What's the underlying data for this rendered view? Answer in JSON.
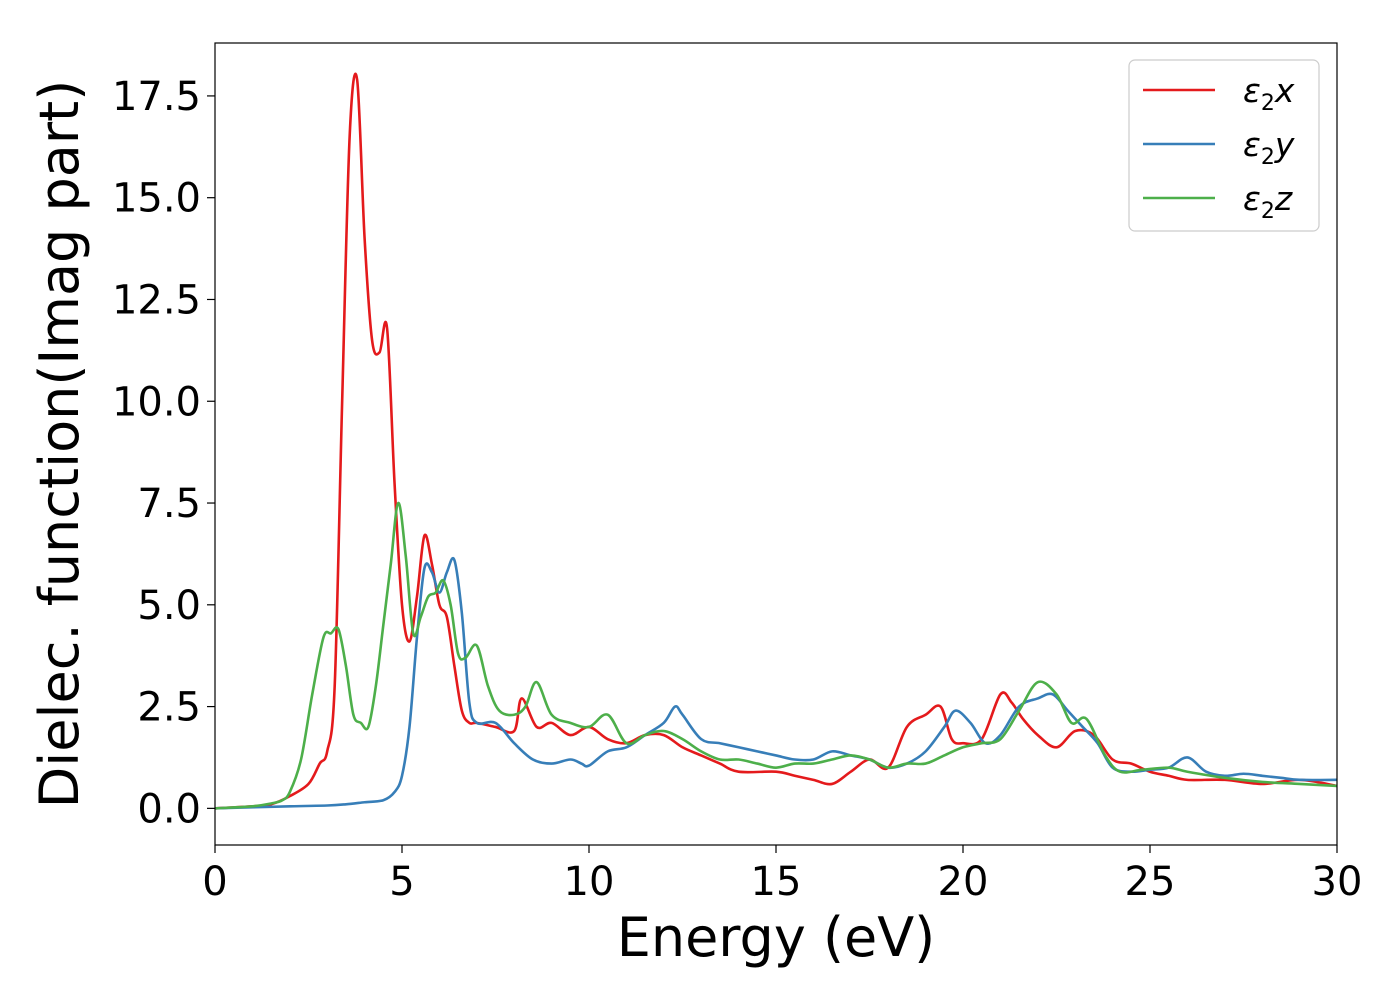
{
  "chart_data": {
    "type": "line",
    "title": "",
    "xlabel": "Energy (eV)",
    "ylabel": "Dielec. function(Imag part)",
    "xlim": [
      0,
      30
    ],
    "ylim": [
      -0.9,
      18.8
    ],
    "xticks": [
      0,
      5,
      10,
      15,
      20,
      25,
      30
    ],
    "xtick_labels": [
      "0",
      "5",
      "10",
      "15",
      "20",
      "25",
      "30"
    ],
    "yticks": [
      0.0,
      2.5,
      5.0,
      7.5,
      10.0,
      12.5,
      15.0,
      17.5
    ],
    "ytick_labels": [
      "0.0",
      "2.5",
      "5.0",
      "7.5",
      "10.0",
      "12.5",
      "15.0",
      "17.5"
    ],
    "grid": false,
    "legend_position": "top-right",
    "series": [
      {
        "name": "ε2x",
        "label_main": "ε",
        "label_sub": "2",
        "label_suffix": "x",
        "color": "#e41a1c",
        "x": [
          0,
          1,
          1.5,
          2,
          2.5,
          2.8,
          3.0,
          3.2,
          3.4,
          3.6,
          3.8,
          4.0,
          4.2,
          4.4,
          4.6,
          4.8,
          5.0,
          5.2,
          5.4,
          5.6,
          5.8,
          6.0,
          6.2,
          6.4,
          6.6,
          6.8,
          7.0,
          7.5,
          8.0,
          8.2,
          8.6,
          9.0,
          9.5,
          10.0,
          10.5,
          11.0,
          11.5,
          12.0,
          12.5,
          13.0,
          13.5,
          14.0,
          15.0,
          15.5,
          16.0,
          16.5,
          17.0,
          17.5,
          18.0,
          18.5,
          19.0,
          19.4,
          19.7,
          20.0,
          20.5,
          21.0,
          21.3,
          21.6,
          22.0,
          22.5,
          23.0,
          23.5,
          24.0,
          24.5,
          25.0,
          25.5,
          26.0,
          27.0,
          28.0,
          29.0,
          30.0
        ],
        "y": [
          0,
          0.05,
          0.1,
          0.3,
          0.6,
          1.1,
          1.4,
          3.0,
          10.0,
          16.5,
          17.9,
          14.0,
          11.5,
          11.2,
          11.8,
          8.0,
          5.0,
          4.1,
          5.2,
          6.7,
          6.0,
          5.0,
          4.7,
          3.5,
          2.4,
          2.1,
          2.1,
          2.0,
          1.9,
          2.7,
          2.0,
          2.1,
          1.8,
          2.0,
          1.7,
          1.6,
          1.8,
          1.8,
          1.5,
          1.3,
          1.1,
          0.9,
          0.9,
          0.8,
          0.7,
          0.6,
          0.9,
          1.2,
          1.0,
          2.0,
          2.3,
          2.5,
          1.7,
          1.6,
          1.7,
          2.8,
          2.6,
          2.2,
          1.8,
          1.5,
          1.9,
          1.8,
          1.2,
          1.1,
          0.9,
          0.8,
          0.7,
          0.7,
          0.6,
          0.7,
          0.55
        ]
      },
      {
        "name": "ε2y",
        "label_main": "ε",
        "label_sub": "2",
        "label_suffix": "y",
        "color": "#377eb8",
        "x": [
          0,
          2,
          3,
          3.5,
          4,
          4.5,
          4.8,
          5.0,
          5.2,
          5.4,
          5.6,
          5.8,
          6.0,
          6.2,
          6.4,
          6.6,
          6.8,
          7.0,
          7.5,
          8.0,
          8.5,
          9.0,
          9.5,
          9.8,
          10.0,
          10.5,
          11.0,
          11.5,
          12.0,
          12.3,
          12.5,
          13.0,
          13.5,
          14.0,
          14.5,
          15.0,
          15.5,
          16.0,
          16.5,
          17.0,
          17.5,
          18.0,
          18.5,
          19.0,
          19.5,
          19.8,
          20.2,
          20.6,
          21.0,
          21.5,
          22.0,
          22.4,
          22.8,
          23.2,
          23.6,
          24.0,
          24.5,
          25.0,
          25.5,
          26.0,
          26.5,
          27.0,
          27.5,
          28.0,
          28.5,
          29.0,
          30.0
        ],
        "y": [
          0,
          0.05,
          0.07,
          0.1,
          0.15,
          0.2,
          0.4,
          0.8,
          2.0,
          4.2,
          5.9,
          5.8,
          5.3,
          5.8,
          6.1,
          4.8,
          2.6,
          2.1,
          2.1,
          1.6,
          1.2,
          1.1,
          1.2,
          1.1,
          1.05,
          1.4,
          1.5,
          1.8,
          2.1,
          2.5,
          2.3,
          1.7,
          1.6,
          1.5,
          1.4,
          1.3,
          1.2,
          1.2,
          1.4,
          1.3,
          1.2,
          1.0,
          1.1,
          1.4,
          2.0,
          2.4,
          2.1,
          1.6,
          1.8,
          2.5,
          2.7,
          2.8,
          2.4,
          2.0,
          1.6,
          1.0,
          0.9,
          0.95,
          1.0,
          1.25,
          0.9,
          0.8,
          0.85,
          0.8,
          0.75,
          0.7,
          0.7
        ]
      },
      {
        "name": "ε2z",
        "label_main": "ε",
        "label_sub": "2",
        "label_suffix": "z",
        "color": "#4daf4a",
        "x": [
          0,
          1,
          1.5,
          1.8,
          2.0,
          2.3,
          2.6,
          2.9,
          3.1,
          3.3,
          3.5,
          3.7,
          3.9,
          4.1,
          4.3,
          4.5,
          4.7,
          4.9,
          5.1,
          5.3,
          5.5,
          5.7,
          5.9,
          6.1,
          6.3,
          6.5,
          6.7,
          7.0,
          7.3,
          7.6,
          8.0,
          8.3,
          8.6,
          9.0,
          9.5,
          10.0,
          10.5,
          11.0,
          11.5,
          12.0,
          12.5,
          13.0,
          13.5,
          14.0,
          14.5,
          15.0,
          15.5,
          16.0,
          16.5,
          17.0,
          17.5,
          18.0,
          18.5,
          19.0,
          19.5,
          20.0,
          20.5,
          21.0,
          21.5,
          22.0,
          22.5,
          22.9,
          23.3,
          23.8,
          24.2,
          24.8,
          25.5,
          26.0,
          27.0,
          28.0,
          29.0,
          30.0
        ],
        "y": [
          0,
          0.05,
          0.12,
          0.2,
          0.4,
          1.2,
          2.8,
          4.2,
          4.3,
          4.4,
          3.5,
          2.3,
          2.1,
          2.0,
          3.0,
          4.5,
          6.0,
          7.5,
          6.2,
          4.3,
          4.7,
          5.2,
          5.3,
          5.6,
          5.0,
          3.8,
          3.7,
          4.0,
          3.0,
          2.4,
          2.3,
          2.5,
          3.1,
          2.3,
          2.1,
          2.0,
          2.3,
          1.6,
          1.8,
          1.9,
          1.7,
          1.4,
          1.2,
          1.2,
          1.1,
          1.0,
          1.1,
          1.1,
          1.2,
          1.3,
          1.2,
          1.0,
          1.1,
          1.1,
          1.3,
          1.5,
          1.6,
          1.7,
          2.4,
          3.1,
          2.8,
          2.1,
          2.2,
          1.3,
          0.9,
          0.95,
          1.0,
          0.9,
          0.75,
          0.65,
          0.6,
          0.55
        ]
      }
    ]
  }
}
